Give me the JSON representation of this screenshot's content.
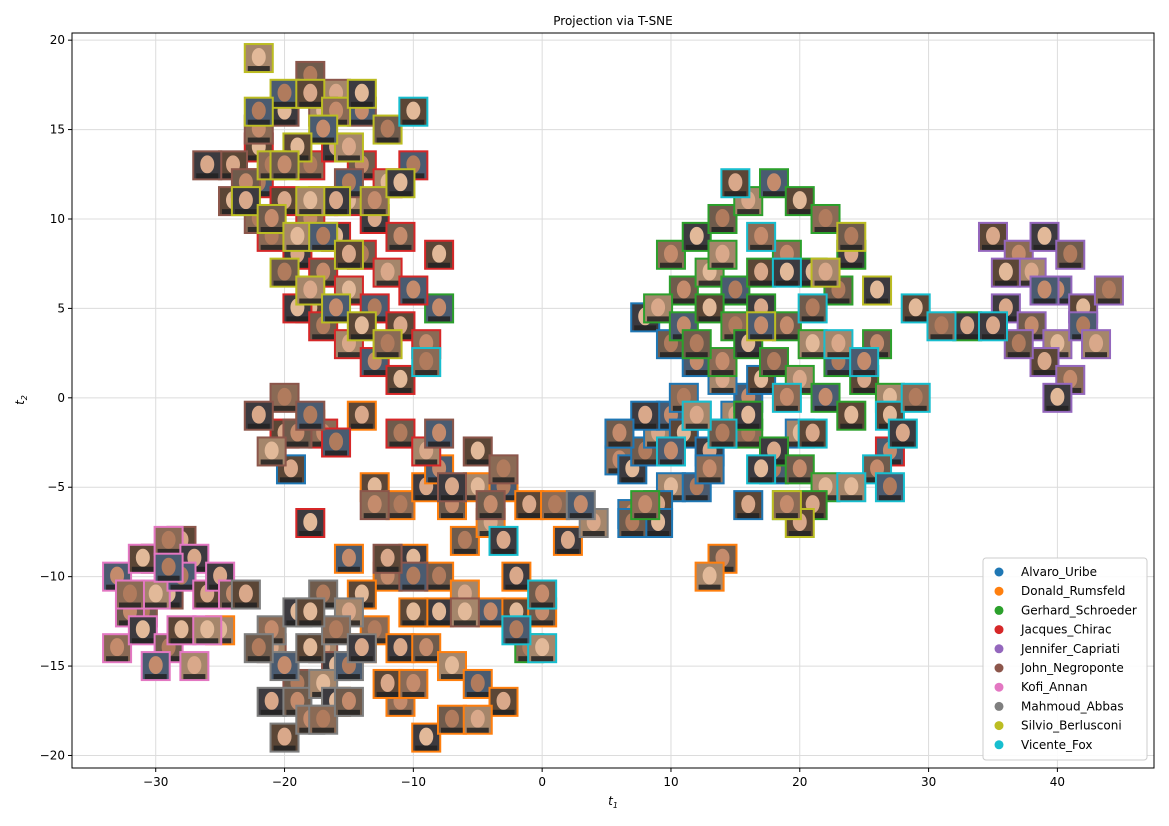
{
  "chart_data": {
    "type": "scatter",
    "title": "Projection via T-SNE",
    "xlabel": "t",
    "xlabel_sub": "1",
    "ylabel": "t",
    "ylabel_sub": "2",
    "xlim": [
      -36.5,
      47.5
    ],
    "ylim": [
      -20.7,
      20.4
    ],
    "xticks": [
      -30,
      -20,
      -10,
      0,
      10,
      20,
      30,
      40
    ],
    "yticks": [
      -20,
      -15,
      -10,
      -5,
      0,
      5,
      10,
      15,
      20
    ],
    "grid": true,
    "legend_position": "lower-right",
    "marker": "face-thumbnail",
    "series": [
      {
        "name": "Alvaro_Uribe",
        "color": "#1f77b4",
        "points": [
          [
            -19.5,
            -4
          ],
          [
            6,
            -3.5
          ],
          [
            7,
            -4
          ],
          [
            8,
            -3
          ],
          [
            9,
            -2
          ],
          [
            10,
            -1
          ],
          [
            11,
            -2
          ],
          [
            12,
            -1
          ],
          [
            13,
            -3
          ],
          [
            14,
            -2
          ],
          [
            10,
            -5
          ],
          [
            12,
            -5
          ],
          [
            9,
            -6
          ],
          [
            7,
            -6.5
          ],
          [
            8,
            4.5
          ],
          [
            10,
            3
          ],
          [
            15,
            -1
          ],
          [
            16,
            0
          ],
          [
            17,
            1
          ],
          [
            11,
            0
          ],
          [
            8,
            -1
          ],
          [
            6,
            -2
          ],
          [
            20,
            -2
          ],
          [
            18,
            -4
          ],
          [
            16,
            -6
          ],
          [
            13,
            -4
          ],
          [
            9,
            -7
          ],
          [
            7,
            -7
          ],
          [
            14,
            1
          ],
          [
            12,
            2
          ]
        ]
      },
      {
        "name": "Donald_Rumsfeld",
        "color": "#ff7f0e",
        "points": [
          [
            -13,
            -5
          ],
          [
            -11,
            -6
          ],
          [
            -9,
            -5
          ],
          [
            -7,
            -6
          ],
          [
            -5,
            -5
          ],
          [
            -3,
            -5
          ],
          [
            -1,
            -6
          ],
          [
            -12,
            -10
          ],
          [
            -10,
            -9
          ],
          [
            -8,
            -10
          ],
          [
            -6,
            -11
          ],
          [
            -4,
            -12
          ],
          [
            -2,
            -12
          ],
          [
            -13,
            -13
          ],
          [
            -11,
            -14
          ],
          [
            -9,
            -14
          ],
          [
            -7,
            -15
          ],
          [
            -5,
            -16
          ],
          [
            -3,
            -17
          ],
          [
            -11,
            -17
          ],
          [
            -9,
            -19
          ],
          [
            -7,
            -18
          ],
          [
            -5,
            -18
          ],
          [
            -15,
            -9
          ],
          [
            -14,
            -11
          ],
          [
            1,
            -6
          ],
          [
            2,
            -8
          ],
          [
            14,
            -9
          ],
          [
            13,
            -10
          ],
          [
            -16,
            -17
          ],
          [
            -12,
            -16
          ],
          [
            -10,
            -16
          ],
          [
            -8,
            -12
          ],
          [
            -6,
            -8
          ],
          [
            -4,
            -7
          ],
          [
            -8,
            -4
          ],
          [
            -10,
            -12
          ],
          [
            -14,
            -14
          ],
          [
            -2,
            -10
          ],
          [
            0,
            -12
          ],
          [
            -25,
            -13
          ],
          [
            -18,
            -1.5
          ],
          [
            -14,
            -1
          ]
        ]
      },
      {
        "name": "Gerhard_Schroeder",
        "color": "#2ca02c",
        "points": [
          [
            10,
            8
          ],
          [
            12,
            9
          ],
          [
            14,
            10
          ],
          [
            16,
            11
          ],
          [
            18,
            12
          ],
          [
            20,
            11
          ],
          [
            22,
            10
          ],
          [
            24,
            8
          ],
          [
            11,
            6
          ],
          [
            13,
            7
          ],
          [
            15,
            6
          ],
          [
            17,
            7
          ],
          [
            19,
            8
          ],
          [
            21,
            7
          ],
          [
            23,
            6
          ],
          [
            9,
            5
          ],
          [
            11,
            4
          ],
          [
            13,
            5
          ],
          [
            15,
            4
          ],
          [
            17,
            5
          ],
          [
            19,
            4
          ],
          [
            21,
            3
          ],
          [
            23,
            2
          ],
          [
            25,
            1
          ],
          [
            14,
            2
          ],
          [
            16,
            3
          ],
          [
            18,
            2
          ],
          [
            20,
            1
          ],
          [
            22,
            0
          ],
          [
            24,
            -1
          ],
          [
            16,
            -2
          ],
          [
            18,
            -3
          ],
          [
            20,
            -4
          ],
          [
            22,
            -5
          ],
          [
            19,
            -6
          ],
          [
            21,
            -6
          ],
          [
            8,
            -6
          ],
          [
            16,
            -1
          ],
          [
            12,
            3
          ],
          [
            14,
            8
          ],
          [
            -8,
            5
          ],
          [
            -18,
            5
          ],
          [
            -1,
            -14
          ],
          [
            33,
            4
          ],
          [
            26,
            3
          ],
          [
            27,
            0
          ]
        ]
      },
      {
        "name": "Jacques_Chirac",
        "color": "#d62728",
        "points": [
          [
            -22,
            12
          ],
          [
            -20,
            11
          ],
          [
            -18,
            10
          ],
          [
            -16,
            9
          ],
          [
            -14,
            8
          ],
          [
            -12,
            7
          ],
          [
            -10,
            6
          ],
          [
            -8,
            8
          ],
          [
            -21,
            9
          ],
          [
            -19,
            8
          ],
          [
            -17,
            7
          ],
          [
            -15,
            6
          ],
          [
            -13,
            5
          ],
          [
            -11,
            4
          ],
          [
            -9,
            3
          ],
          [
            -19,
            5
          ],
          [
            -17,
            4
          ],
          [
            -15,
            3
          ],
          [
            -13,
            2
          ],
          [
            -11,
            1
          ],
          [
            -18,
            13
          ],
          [
            -16,
            14
          ],
          [
            -14,
            13
          ],
          [
            -12,
            12
          ],
          [
            -10,
            13
          ],
          [
            -20,
            -2
          ],
          [
            -17,
            -2
          ],
          [
            -18,
            -7
          ],
          [
            -11,
            -2
          ],
          [
            -9,
            -3
          ],
          [
            27,
            -3
          ],
          [
            -22,
            14
          ],
          [
            -17,
            11
          ],
          [
            -13,
            10
          ],
          [
            -11,
            9
          ],
          [
            -15,
            11
          ],
          [
            -16,
            -2.5
          ]
        ]
      },
      {
        "name": "Jennifer_Capriati",
        "color": "#9467bd",
        "points": [
          [
            35,
            9
          ],
          [
            37,
            8
          ],
          [
            39,
            9
          ],
          [
            41,
            8
          ],
          [
            38,
            7
          ],
          [
            40,
            6
          ],
          [
            42,
            5
          ],
          [
            44,
            6
          ],
          [
            36,
            5
          ],
          [
            38,
            4
          ],
          [
            40,
            3
          ],
          [
            42,
            4
          ],
          [
            39,
            2
          ],
          [
            41,
            1
          ],
          [
            40,
            0
          ],
          [
            37,
            3
          ],
          [
            43,
            3
          ],
          [
            39,
            6
          ],
          [
            36,
            7
          ]
        ]
      },
      {
        "name": "John_Negroponte",
        "color": "#8c564b",
        "points": [
          [
            -20,
            0
          ],
          [
            -22,
            -1
          ],
          [
            -19,
            -2
          ],
          [
            -21,
            -3
          ],
          [
            -18,
            -1
          ],
          [
            -24,
            13
          ],
          [
            -22,
            15
          ],
          [
            -20,
            16
          ],
          [
            -18,
            18
          ],
          [
            -16,
            17
          ],
          [
            -14,
            16
          ],
          [
            -24,
            11
          ],
          [
            -22,
            10
          ],
          [
            -26,
            13
          ],
          [
            -23,
            12
          ],
          [
            -17,
            16
          ],
          [
            -15,
            12
          ],
          [
            -28,
            -8
          ],
          [
            -30,
            -9
          ],
          [
            -29,
            -11
          ],
          [
            -31,
            -12
          ],
          [
            -17,
            -14
          ],
          [
            -8,
            -2
          ],
          [
            -5,
            -3
          ],
          [
            -3,
            -4
          ],
          [
            -7,
            -5
          ],
          [
            -4,
            -6
          ],
          [
            -6,
            -12
          ],
          [
            -10,
            -10
          ],
          [
            -12,
            -9
          ],
          [
            -13,
            -6
          ],
          [
            -16,
            -15
          ],
          [
            -19,
            -16
          ],
          [
            -21,
            -14
          ]
        ]
      },
      {
        "name": "Kofi_Annan",
        "color": "#e377c2",
        "points": [
          [
            -33,
            -10
          ],
          [
            -31,
            -9
          ],
          [
            -29,
            -8
          ],
          [
            -27,
            -9
          ],
          [
            -32,
            -12
          ],
          [
            -30,
            -11
          ],
          [
            -28,
            -10
          ],
          [
            -26,
            -11
          ],
          [
            -33,
            -14
          ],
          [
            -31,
            -13
          ],
          [
            -29,
            -14
          ],
          [
            -27,
            -15
          ],
          [
            -30,
            -15
          ],
          [
            -28,
            -13
          ],
          [
            -32,
            -11
          ],
          [
            -25,
            -10
          ],
          [
            -24,
            -11
          ],
          [
            -26,
            -13
          ],
          [
            -29,
            -9.5
          ]
        ]
      },
      {
        "name": "Mahmoud_Abbas",
        "color": "#7f7f7f",
        "points": [
          [
            -23,
            -11
          ],
          [
            -21,
            -13
          ],
          [
            -19,
            -12
          ],
          [
            -17,
            -11
          ],
          [
            -15,
            -12
          ],
          [
            -20,
            -15
          ],
          [
            -18,
            -14
          ],
          [
            -16,
            -13
          ],
          [
            -21,
            -17
          ],
          [
            -19,
            -17
          ],
          [
            -17,
            -16
          ],
          [
            -15,
            -15
          ],
          [
            -20,
            -19
          ],
          [
            -18,
            -18
          ],
          [
            -16,
            -17
          ],
          [
            -22,
            -14
          ],
          [
            4,
            -7
          ],
          [
            3,
            -6
          ],
          [
            -18,
            -12
          ],
          [
            -17,
            -18
          ],
          [
            -14,
            -14
          ],
          [
            -15,
            -17
          ]
        ]
      },
      {
        "name": "Silvio_Berlusconi",
        "color": "#bcbd22",
        "points": [
          [
            -22,
            19
          ],
          [
            -20,
            17
          ],
          [
            -18,
            17
          ],
          [
            -16,
            16
          ],
          [
            -14,
            17
          ],
          [
            -12,
            15
          ],
          [
            -15,
            14
          ],
          [
            -17,
            15
          ],
          [
            -19,
            14
          ],
          [
            -21,
            13
          ],
          [
            -23,
            11
          ],
          [
            -21,
            10
          ],
          [
            -19,
            9
          ],
          [
            -17,
            9
          ],
          [
            -15,
            8
          ],
          [
            -13,
            11
          ],
          [
            -11,
            12
          ],
          [
            -20,
            7
          ],
          [
            -18,
            6
          ],
          [
            -16,
            5
          ],
          [
            -14,
            4
          ],
          [
            -12,
            3
          ],
          [
            -16,
            11
          ],
          [
            -20,
            13
          ],
          [
            -18,
            11
          ],
          [
            -22,
            16
          ],
          [
            20,
            -7
          ],
          [
            19,
            -6
          ],
          [
            26,
            6
          ],
          [
            24,
            9
          ],
          [
            22,
            7
          ],
          [
            17,
            4
          ]
        ]
      },
      {
        "name": "Vicente_Fox",
        "color": "#17becf",
        "points": [
          [
            -10,
            16
          ],
          [
            -9,
            2
          ],
          [
            -3,
            -8
          ],
          [
            0,
            -11
          ],
          [
            0,
            -14
          ],
          [
            -2,
            -13
          ],
          [
            15,
            12
          ],
          [
            17,
            9
          ],
          [
            19,
            7
          ],
          [
            21,
            5
          ],
          [
            23,
            3
          ],
          [
            25,
            2
          ],
          [
            27,
            -1
          ],
          [
            29,
            0
          ],
          [
            28,
            -2
          ],
          [
            26,
            -4
          ],
          [
            24,
            -5
          ],
          [
            27,
            -5
          ],
          [
            21,
            -2
          ],
          [
            19,
            0
          ],
          [
            17,
            -4
          ],
          [
            14,
            -2
          ],
          [
            12,
            -1
          ],
          [
            10,
            -3
          ],
          [
            29,
            5
          ],
          [
            31,
            4
          ],
          [
            35,
            4
          ]
        ]
      }
    ]
  }
}
